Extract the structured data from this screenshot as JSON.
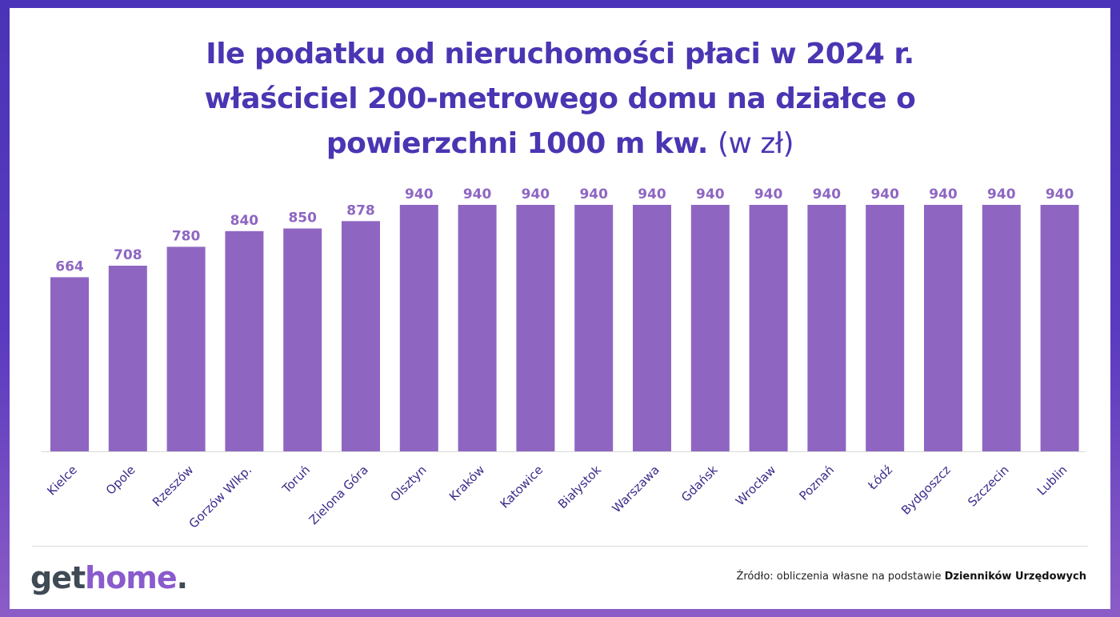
{
  "title": {
    "line1": "Ile podatku od nieruchomości płaci w 2024 r.",
    "line2": "właściciel 200-metrowego domu na działce o",
    "line3_bold": "powierzchni 1000 m kw.",
    "line3_unit": "(w zł)"
  },
  "chart_data": {
    "type": "bar",
    "title": "Ile podatku od nieruchomości płaci w 2024 r. właściciel 200-metrowego domu na działce o powierzchni 1000 m kw. (w zł)",
    "xlabel": "",
    "ylabel": "",
    "ylim": [
      0,
      940
    ],
    "grid": false,
    "categories": [
      "Kielce",
      "Opole",
      "Rzeszów",
      "Gorzów Wlkp.",
      "Toruń",
      "Zielona Góra",
      "Olsztyn",
      "Kraków",
      "Katowice",
      "Białystok",
      "Warszawa",
      "Gdańsk",
      "Wrocław",
      "Poznań",
      "Łódź",
      "Bydgoszcz",
      "Szczecin",
      "Lublin"
    ],
    "values": [
      664,
      708,
      780,
      840,
      850,
      878,
      940,
      940,
      940,
      940,
      940,
      940,
      940,
      940,
      940,
      940,
      940,
      940
    ],
    "bar_color": "#8e66c2"
  },
  "logo": {
    "part1": "get",
    "part2": "home",
    "part3": "."
  },
  "source": {
    "prefix": "Źródło: obliczenia własne na podstawie ",
    "bold": "Dzienników Urzędowych"
  },
  "colors": {
    "title": "#4a35b3",
    "frame": "#4a33b8",
    "bar": "#8e66c2"
  }
}
